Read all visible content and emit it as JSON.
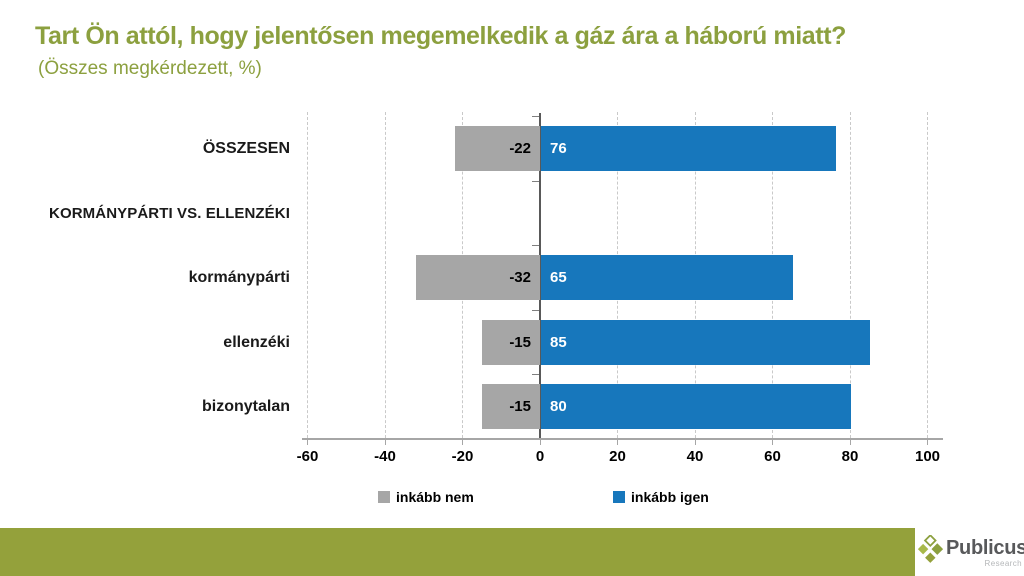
{
  "slide": {
    "title": "Tart Ön attól, hogy jelentősen megemelkedik a gáz ára a háború miatt?",
    "subtitle": "(Összes megkérdezett, %)"
  },
  "chart_data": {
    "type": "bar",
    "orientation": "horizontal-diverging",
    "title": "Tart Ön attól, hogy jelentősen megemelkedik a gáz ára a háború miatt?",
    "subtitle": "(Összes megkérdezett, %)",
    "unit": "%",
    "categories": [
      "ÖSSZESEN",
      "KORMÁNYPÁRTI VS. ELLENZÉKI",
      "kormánypárti",
      "ellenzéki",
      "bizonytalan"
    ],
    "rows": [
      {
        "label": "ÖSSZESEN",
        "is_section": false,
        "inkabb_nem": -22,
        "inkabb_igen": 76
      },
      {
        "label": "KORMÁNYPÁRTI VS. ELLENZÉKI",
        "is_section": true,
        "inkabb_nem": null,
        "inkabb_igen": null
      },
      {
        "label": "kormánypárti",
        "is_section": false,
        "inkabb_nem": -32,
        "inkabb_igen": 65
      },
      {
        "label": "ellenzéki",
        "is_section": false,
        "inkabb_nem": -15,
        "inkabb_igen": 85
      },
      {
        "label": "bizonytalan",
        "is_section": false,
        "inkabb_nem": -15,
        "inkabb_igen": 80
      }
    ],
    "series": [
      {
        "name": "inkább nem",
        "color": "#a6a6a6",
        "values": [
          -22,
          null,
          -32,
          -15,
          -15
        ]
      },
      {
        "name": "inkább igen",
        "color": "#1777bc",
        "values": [
          76,
          null,
          65,
          85,
          80
        ]
      }
    ],
    "xticks": [
      -60,
      -40,
      -20,
      0,
      20,
      40,
      60,
      80,
      100
    ],
    "xlim": [
      -60,
      100
    ],
    "grid": "vertical-dashed",
    "legend": [
      {
        "label": "inkább nem",
        "color": "#a6a6a6"
      },
      {
        "label": "inkább igen",
        "color": "#1777bc"
      }
    ],
    "legend_position": "bottom"
  },
  "colors": {
    "accent_olive": "#94a13b",
    "title_green": "#8ca03f",
    "bar_blue": "#1777bc",
    "bar_gray": "#a6a6a6",
    "axis_gray": "#a6a6a6",
    "zero_line": "#595959"
  },
  "footer": {
    "brand": "Publicus",
    "brand_sub": "Research"
  }
}
